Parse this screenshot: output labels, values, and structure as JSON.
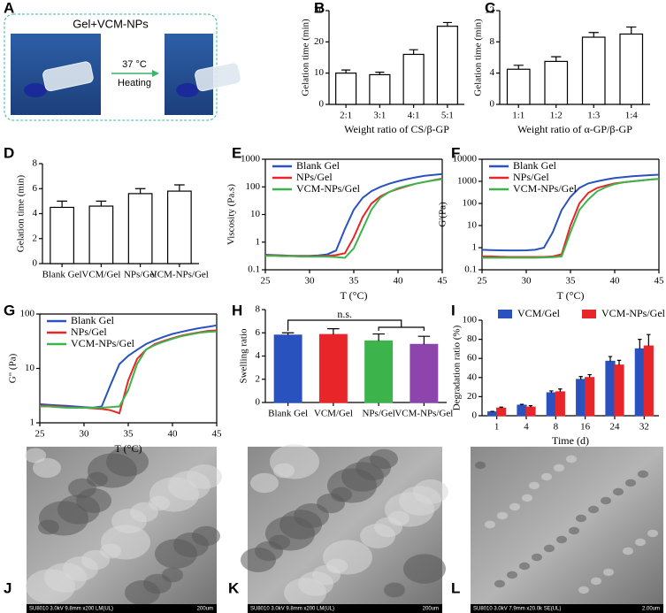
{
  "panel_labels": [
    "A",
    "B",
    "C",
    "D",
    "E",
    "F",
    "G",
    "H",
    "I",
    "J",
    "K",
    "L"
  ],
  "photo": {
    "title": "Gel+VCM-NPs",
    "arrow_top": "37 °C",
    "arrow_bottom": "Heating"
  },
  "sem": [
    {
      "caption": "SU8010 3.0kV 9.8mm x200 LM(UL)",
      "scale": "200um"
    },
    {
      "caption": "SU8010 3.0kV 9.8mm x200 LM(UL)",
      "scale": "200um"
    },
    {
      "caption": "SU8010 3.0kV 7.9mm x20.0k SE(UL)",
      "scale": "2.00um"
    }
  ],
  "chart_data": [
    {
      "type": "bar",
      "categories": [
        "2:1",
        "3:1",
        "4:1",
        "5:1"
      ],
      "values": [
        10,
        9.5,
        16,
        25
      ],
      "errors": [
        1,
        0.8,
        1.5,
        1.2
      ],
      "color": "#ffffff",
      "ylim": [
        0,
        30
      ],
      "yticks": [
        0,
        10,
        20,
        30
      ],
      "xlabel": "Weight ratio of CS/β-GP",
      "ylabel": "Gelation time (min)"
    },
    {
      "type": "bar",
      "categories": [
        "1:1",
        "1:2",
        "1:3",
        "1:4"
      ],
      "values": [
        4.5,
        5.5,
        8.6,
        9.0
      ],
      "errors": [
        0.5,
        0.6,
        0.6,
        0.9
      ],
      "color": "#ffffff",
      "ylim": [
        0,
        12
      ],
      "yticks": [
        0,
        4,
        8,
        12
      ],
      "xlabel": "Weight ratio of α-GP/β-GP",
      "ylabel": "Gelation time (min)"
    },
    {
      "type": "bar",
      "categories": [
        "Blank Gel",
        "VCM/Gel",
        "NPs/Gel",
        "VCM-NPs/Gel"
      ],
      "values": [
        4.5,
        4.6,
        5.6,
        5.8
      ],
      "errors": [
        0.5,
        0.4,
        0.4,
        0.5
      ],
      "color": "#ffffff",
      "ylim": [
        0,
        8
      ],
      "yticks": [
        0,
        2,
        4,
        6,
        8
      ],
      "ylabel": "Gelation time (min)"
    },
    {
      "type": "line",
      "log_y": true,
      "x": [
        25,
        26,
        27,
        28,
        29,
        30,
        31,
        32,
        33,
        34,
        35,
        36,
        37,
        38,
        39,
        40,
        41,
        42,
        43,
        44,
        45
      ],
      "xlim": [
        25,
        45
      ],
      "xticks": [
        25,
        30,
        35,
        40,
        45
      ],
      "ylim": [
        0.1,
        1000
      ],
      "yticks": [
        0.1,
        1,
        10,
        100,
        1000
      ],
      "xlabel": "T (°C)",
      "ylabel": "Viscosity (Pa.s)",
      "series": [
        {
          "name": "Blank Gel",
          "color": "#2a52be",
          "values": [
            0.35,
            0.34,
            0.33,
            0.32,
            0.32,
            0.32,
            0.33,
            0.36,
            0.5,
            3,
            15,
            40,
            70,
            100,
            130,
            160,
            190,
            220,
            250,
            270,
            290
          ]
        },
        {
          "name": "NPs/Gel",
          "color": "#e8262a",
          "values": [
            0.33,
            0.33,
            0.32,
            0.32,
            0.31,
            0.31,
            0.31,
            0.32,
            0.34,
            0.4,
            1.5,
            8,
            25,
            45,
            65,
            85,
            105,
            130,
            150,
            175,
            200
          ]
        },
        {
          "name": "VCM-NPs/Gel",
          "color": "#3cb44b",
          "values": [
            0.32,
            0.32,
            0.31,
            0.31,
            0.3,
            0.3,
            0.3,
            0.3,
            0.29,
            0.27,
            0.6,
            3,
            15,
            40,
            65,
            90,
            110,
            130,
            150,
            170,
            190
          ]
        }
      ]
    },
    {
      "type": "line",
      "log_y": true,
      "x": [
        25,
        26,
        27,
        28,
        29,
        30,
        31,
        32,
        33,
        34,
        35,
        36,
        37,
        38,
        39,
        40,
        41,
        42,
        43,
        44,
        45
      ],
      "xlim": [
        25,
        45
      ],
      "xticks": [
        25,
        30,
        35,
        40,
        45
      ],
      "ylim": [
        0.1,
        10000
      ],
      "yticks": [
        0.1,
        1,
        10,
        100,
        1000,
        10000
      ],
      "xlabel": "T (°C)",
      "ylabel": "G'(Pa)",
      "series": [
        {
          "name": "Blank Gel",
          "color": "#2a52be",
          "values": [
            0.8,
            0.78,
            0.76,
            0.75,
            0.75,
            0.76,
            0.8,
            1,
            5,
            50,
            200,
            500,
            800,
            1000,
            1200,
            1400,
            1550,
            1700,
            1800,
            1900,
            2000
          ]
        },
        {
          "name": "NPs/Gel",
          "color": "#e8262a",
          "values": [
            0.4,
            0.4,
            0.39,
            0.38,
            0.38,
            0.38,
            0.38,
            0.38,
            0.4,
            0.5,
            10,
            100,
            300,
            500,
            650,
            800,
            900,
            1000,
            1100,
            1200,
            1300
          ]
        },
        {
          "name": "VCM-NPs/Gel",
          "color": "#3cb44b",
          "values": [
            0.35,
            0.35,
            0.35,
            0.35,
            0.35,
            0.35,
            0.35,
            0.36,
            0.37,
            0.4,
            5,
            50,
            150,
            350,
            550,
            750,
            900,
            1000,
            1100,
            1200,
            1300
          ]
        }
      ]
    },
    {
      "type": "line",
      "log_y": true,
      "x": [
        25,
        26,
        27,
        28,
        29,
        30,
        31,
        32,
        33,
        34,
        35,
        36,
        37,
        38,
        39,
        40,
        41,
        42,
        43,
        44,
        45
      ],
      "xlim": [
        25,
        45
      ],
      "xticks": [
        25,
        30,
        35,
        40,
        45
      ],
      "ylim": [
        1,
        100
      ],
      "yticks": [
        1,
        10,
        100
      ],
      "xlabel": "T (°C)",
      "ylabel": "G\" (Pa)",
      "series": [
        {
          "name": "Blank Gel",
          "color": "#2a52be",
          "values": [
            2.2,
            2.15,
            2.1,
            2.05,
            2,
            1.95,
            1.9,
            2,
            5,
            12,
            17,
            22,
            28,
            33,
            38,
            43,
            47,
            51,
            55,
            58,
            62
          ]
        },
        {
          "name": "NPs/Gel",
          "color": "#e8262a",
          "values": [
            2.1,
            2.05,
            2,
            1.95,
            1.9,
            1.9,
            1.85,
            1.8,
            1.7,
            1.5,
            6,
            15,
            22,
            28,
            32,
            36,
            40,
            43,
            46,
            49,
            50
          ]
        },
        {
          "name": "VCM-NPs/Gel",
          "color": "#3cb44b",
          "values": [
            2,
            2,
            1.95,
            1.9,
            1.9,
            1.9,
            1.9,
            1.9,
            1.95,
            2,
            4,
            12,
            22,
            27,
            31,
            35,
            39,
            42,
            45,
            47,
            48
          ]
        }
      ]
    },
    {
      "type": "bar",
      "categories": [
        "Blank Gel",
        "VCM/Gel",
        "NPs/Gel",
        "VCM-NPs/Gel"
      ],
      "values": [
        5.8,
        5.85,
        5.3,
        5.0
      ],
      "errors": [
        0.2,
        0.5,
        0.6,
        0.7
      ],
      "colors": [
        "#2a52be",
        "#e8262a",
        "#3cb44b",
        "#8e44ad"
      ],
      "ylim": [
        0,
        8
      ],
      "yticks": [
        0,
        2,
        4,
        6,
        8
      ],
      "ylabel": "Swelling ratio",
      "annotation": "n.s."
    },
    {
      "type": "bar",
      "categories": [
        "1",
        "4",
        "8",
        "16",
        "24",
        "32"
      ],
      "ylim": [
        0,
        100
      ],
      "yticks": [
        0,
        20,
        40,
        60,
        80,
        100
      ],
      "xlabel": "Time (d)",
      "ylabel": "Degradation ratio (%)",
      "series": [
        {
          "name": "VCM/Gel",
          "color": "#2a52be",
          "values": [
            4,
            11,
            24,
            38,
            57,
            70
          ],
          "errors": [
            0.5,
            1,
            2,
            3,
            5,
            10
          ]
        },
        {
          "name": "VCM-NPs/Gel",
          "color": "#e8262a",
          "values": [
            8,
            9,
            25,
            40,
            53,
            73
          ],
          "errors": [
            1,
            1.5,
            3,
            3,
            5,
            12
          ]
        }
      ]
    }
  ]
}
